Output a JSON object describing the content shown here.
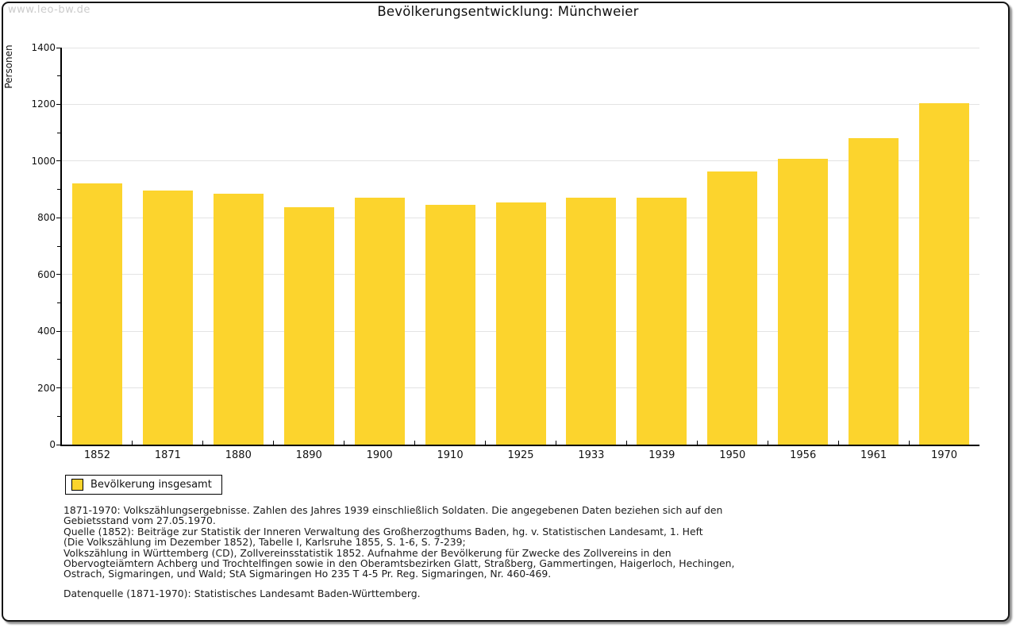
{
  "watermark": "www.leo-bw.de",
  "chart_data": {
    "type": "bar",
    "title": "Bevölkerungsentwicklung: Münchweier",
    "xlabel": "",
    "ylabel": "Personen",
    "categories": [
      "1852",
      "1871",
      "1880",
      "1890",
      "1900",
      "1910",
      "1925",
      "1933",
      "1939",
      "1950",
      "1956",
      "1961",
      "1970"
    ],
    "series": [
      {
        "name": "Bevölkerung insgesamt",
        "color": "#FCD42D",
        "values": [
          920,
          897,
          884,
          838,
          872,
          846,
          853,
          870,
          870,
          963,
          1007,
          1082,
          1205
        ]
      }
    ],
    "ylim": [
      0,
      1400
    ],
    "ytick_step": 200,
    "y_minor_tick_step": 100,
    "grid": true,
    "legend_position": "bottom-left"
  },
  "legend": {
    "label": "Bevölkerung insgesamt",
    "swatch_color": "#FCD42D"
  },
  "footnotes": {
    "lines": [
      "1871-1970: Volkszählungsergebnisse. Zahlen des Jahres 1939 einschließlich Soldaten. Die angegebenen Daten beziehen sich auf den",
      "Gebietsstand vom 27.05.1970.",
      "Quelle (1852): Beiträge zur Statistik der Inneren Verwaltung des Großherzogthums Baden, hg. v. Statistischen Landesamt, 1. Heft",
      "(Die Volkszählung im Dezember 1852), Tabelle I, Karlsruhe 1855, S. 1-6, S. 7-239;",
      "Volkszählung in Württemberg (CD), Zollvereinsstatistik 1852. Aufnahme der Bevölkerung für Zwecke des Zollvereins in den",
      "Obervogteiämtern Achberg und Trochtelfingen sowie in den Oberamtsbezirken Glatt, Straßberg, Gammertingen, Haigerloch, Hechingen,",
      "Ostrach, Sigmaringen, und Wald; StA Sigmaringen Ho 235 T 4-5 Pr. Reg. Sigmaringen, Nr. 460-469."
    ],
    "datasource": "Datenquelle (1871-1970): Statistisches Landesamt Baden-Württemberg."
  },
  "colors": {
    "bar": "#FCD42D",
    "grid": "#E3E3E3",
    "axis": "#000000",
    "watermark": "#CCCCCC",
    "background": "#FFFFFF"
  }
}
